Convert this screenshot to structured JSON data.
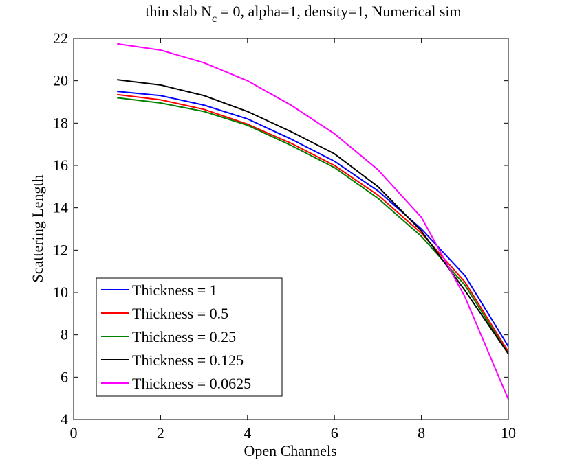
{
  "chart_data": {
    "type": "line",
    "title": {
      "pre": "thin slab N",
      "sub": "c",
      "post": " = 0, alpha=1, density=1, Numerical sim"
    },
    "xlabel": "Open Channels",
    "ylabel": "Scattering Length",
    "xlim": [
      0,
      10
    ],
    "ylim": [
      4,
      22
    ],
    "xticks": [
      0,
      2,
      4,
      6,
      8,
      10
    ],
    "yticks": [
      4,
      6,
      8,
      10,
      12,
      14,
      16,
      18,
      20,
      22
    ],
    "grid": false,
    "legend_position": "bottom-left",
    "x": [
      1,
      2,
      3,
      4,
      5,
      6,
      7,
      8,
      9,
      10
    ],
    "series": [
      {
        "name": "Thickness = 1",
        "color": "#0000ff",
        "values": [
          19.5,
          19.3,
          18.85,
          18.2,
          17.25,
          16.2,
          14.8,
          13.0,
          10.8,
          7.45
        ]
      },
      {
        "name": "Thickness = 0.5",
        "color": "#ff0000",
        "values": [
          19.35,
          19.1,
          18.65,
          17.95,
          17.05,
          16.0,
          14.6,
          12.8,
          10.5,
          7.2
        ]
      },
      {
        "name": "Thickness = 0.25",
        "color": "#008000",
        "values": [
          19.2,
          18.95,
          18.55,
          17.9,
          16.95,
          15.9,
          14.45,
          12.65,
          10.35,
          7.1
        ]
      },
      {
        "name": "Thickness = 0.125",
        "color": "#000000",
        "values": [
          20.05,
          19.8,
          19.3,
          18.55,
          17.6,
          16.55,
          15.0,
          12.9,
          10.1,
          7.1
        ]
      },
      {
        "name": "Thickness = 0.0625",
        "color": "#ff00ff",
        "values": [
          21.75,
          21.45,
          20.85,
          20.0,
          18.85,
          17.5,
          15.8,
          13.55,
          9.8,
          4.95
        ]
      }
    ]
  }
}
